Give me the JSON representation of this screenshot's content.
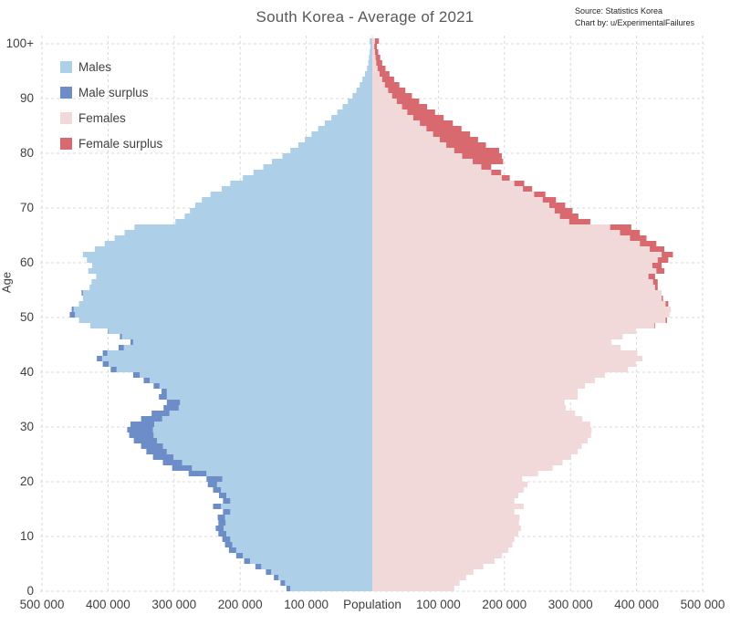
{
  "title": "South Korea - Average of 2021",
  "source": {
    "line1": "Source: Statistics Korea",
    "line2": "Chart by:  u/ExperimentalFailures"
  },
  "legend": {
    "items": [
      {
        "label": "Males",
        "color": "#aecfe8"
      },
      {
        "label": "Male surplus",
        "color": "#6d8dc9"
      },
      {
        "label": "Females",
        "color": "#f1d8d9"
      },
      {
        "label": "Female surplus",
        "color": "#d8696e"
      }
    ]
  },
  "axes": {
    "xlabel": "Population",
    "ylabel": "Age",
    "x_tick_labels": [
      "500 000",
      "400 000",
      "300 000",
      "200 000",
      "100 000",
      "Population",
      "100 000",
      "200 000",
      "300 000",
      "400 000",
      "500 000"
    ],
    "y_tick_labels": [
      "0",
      "10",
      "20",
      "30",
      "40",
      "50",
      "60",
      "70",
      "80",
      "90",
      "100+"
    ],
    "x_max_per_side": 500000,
    "y_gridline_interval": 10,
    "grid": "dashed"
  },
  "colors": {
    "males": "#aecfe8",
    "male_surplus": "#6d8dc9",
    "females": "#f1d8d9",
    "female_surplus": "#d8696e",
    "grid": "#d9d9d9",
    "text": "#404040",
    "title": "#595959"
  },
  "chart_data": {
    "type": "bar",
    "subtype": "population-pyramid",
    "title": "South Korea - Average of 2021",
    "xlabel": "Population",
    "ylabel": "Age",
    "age_min": 0,
    "age_max": 100,
    "top_bin_label": "100+",
    "x_range_per_side": [
      0,
      500000
    ],
    "surplus_rule": "light color = min(males,females); darker tip on the larger side shows the surplus |males-females|",
    "series": [
      {
        "name": "Males",
        "values": [
          130000,
          139000,
          149000,
          161000,
          177000,
          194000,
          206000,
          217000,
          223000,
          227000,
          233000,
          237000,
          233000,
          234000,
          226000,
          241000,
          226000,
          232000,
          241000,
          249000,
          251000,
          278000,
          303000,
          317000,
          332000,
          342000,
          350000,
          361000,
          368000,
          371000,
          366000,
          350000,
          334000,
          316000,
          311000,
          323000,
          319000,
          331000,
          346000,
          362000,
          396000,
          408000,
          417000,
          408000,
          384000,
          366000,
          382000,
          400000,
          427000,
          444000,
          458000,
          455000,
          444000,
          438000,
          440000,
          428000,
          425000,
          418000,
          430000,
          424000,
          432000,
          438000,
          420000,
          405000,
          390000,
          375000,
          360000,
          298000,
          284000,
          276000,
          268000,
          258000,
          245000,
          228000,
          215000,
          196000,
          180000,
          165000,
          152000,
          136000,
          124000,
          112000,
          102000,
          92000,
          82000,
          72000,
          62000,
          53000,
          45000,
          37000,
          30000,
          24000,
          19000,
          15000,
          11000,
          8000,
          6000,
          5000,
          4000,
          3000,
          4000
        ]
      },
      {
        "name": "Females",
        "values": [
          124000,
          132000,
          142000,
          153000,
          168000,
          185000,
          196000,
          206000,
          212000,
          215000,
          221000,
          225000,
          222000,
          223000,
          215000,
          229000,
          215000,
          221000,
          229000,
          235000,
          227000,
          251000,
          273000,
          288000,
          301000,
          311000,
          317000,
          326000,
          331000,
          332000,
          330000,
          318000,
          307000,
          293000,
          291000,
          311000,
          311000,
          322000,
          337000,
          352000,
          387000,
          399000,
          409000,
          401000,
          376000,
          362000,
          379000,
          399000,
          428000,
          446000,
          450000,
          452000,
          448000,
          440000,
          438000,
          432000,
          432000,
          428000,
          442000,
          438000,
          448000,
          455000,
          442000,
          430000,
          415000,
          405000,
          392000,
          330000,
          312000,
          303000,
          292000,
          278000,
          262000,
          242000,
          230000,
          208000,
          195000,
          180000,
          198000,
          196000,
          192000,
          172000,
          160000,
          148000,
          135000,
          122000,
          108000,
          95000,
          83000,
          71000,
          60000,
          50000,
          41000,
          33000,
          26000,
          20000,
          15000,
          12000,
          9000,
          7000,
          10000
        ]
      }
    ]
  }
}
